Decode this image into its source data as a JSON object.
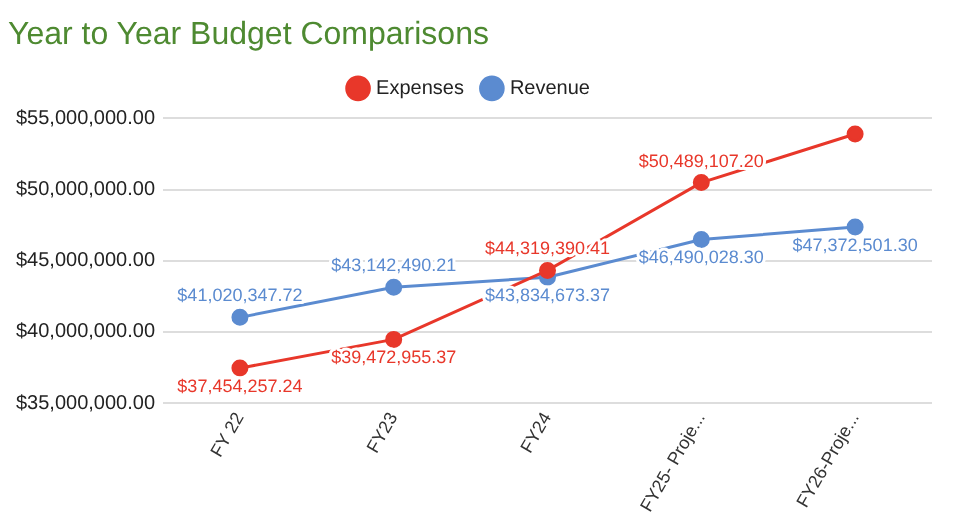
{
  "chart_data": {
    "type": "line",
    "title": "Year to Year Budget Comparisons",
    "categories": [
      "FY 22",
      "FY23",
      "FY24",
      "FY25- Proje...",
      "FY26-Proje..."
    ],
    "series": [
      {
        "name": "Expenses",
        "color": "#e8372a",
        "values": [
          37454257.24,
          39472955.37,
          44319390.41,
          50489107.2,
          53900000
        ],
        "value_labels": [
          "$37,454,257.24",
          "$39,472,955.37",
          "$44,319,390.41",
          "$50,489,107.20",
          null
        ]
      },
      {
        "name": "Revenue",
        "color": "#5b8bd0",
        "values": [
          41020347.72,
          43142490.21,
          43834673.37,
          46490028.3,
          47372501.3
        ],
        "value_labels": [
          "$41,020,347.72",
          "$43,142,490.21",
          "$43,834,673.37",
          "$46,490,028.30",
          "$47,372,501.30"
        ]
      }
    ],
    "ylim": [
      35000000,
      55000000
    ],
    "yticks": [
      {
        "value": 35000000,
        "label": "$35,000,000.00"
      },
      {
        "value": 40000000,
        "label": "$40,000,000.00"
      },
      {
        "value": 45000000,
        "label": "$45,000,000.00"
      },
      {
        "value": 50000000,
        "label": "$50,000,000.00"
      },
      {
        "value": 55000000,
        "label": "$55,000,000.00"
      }
    ],
    "grid": "y",
    "legend": "top",
    "marker": "circle",
    "line_style": "solid"
  }
}
